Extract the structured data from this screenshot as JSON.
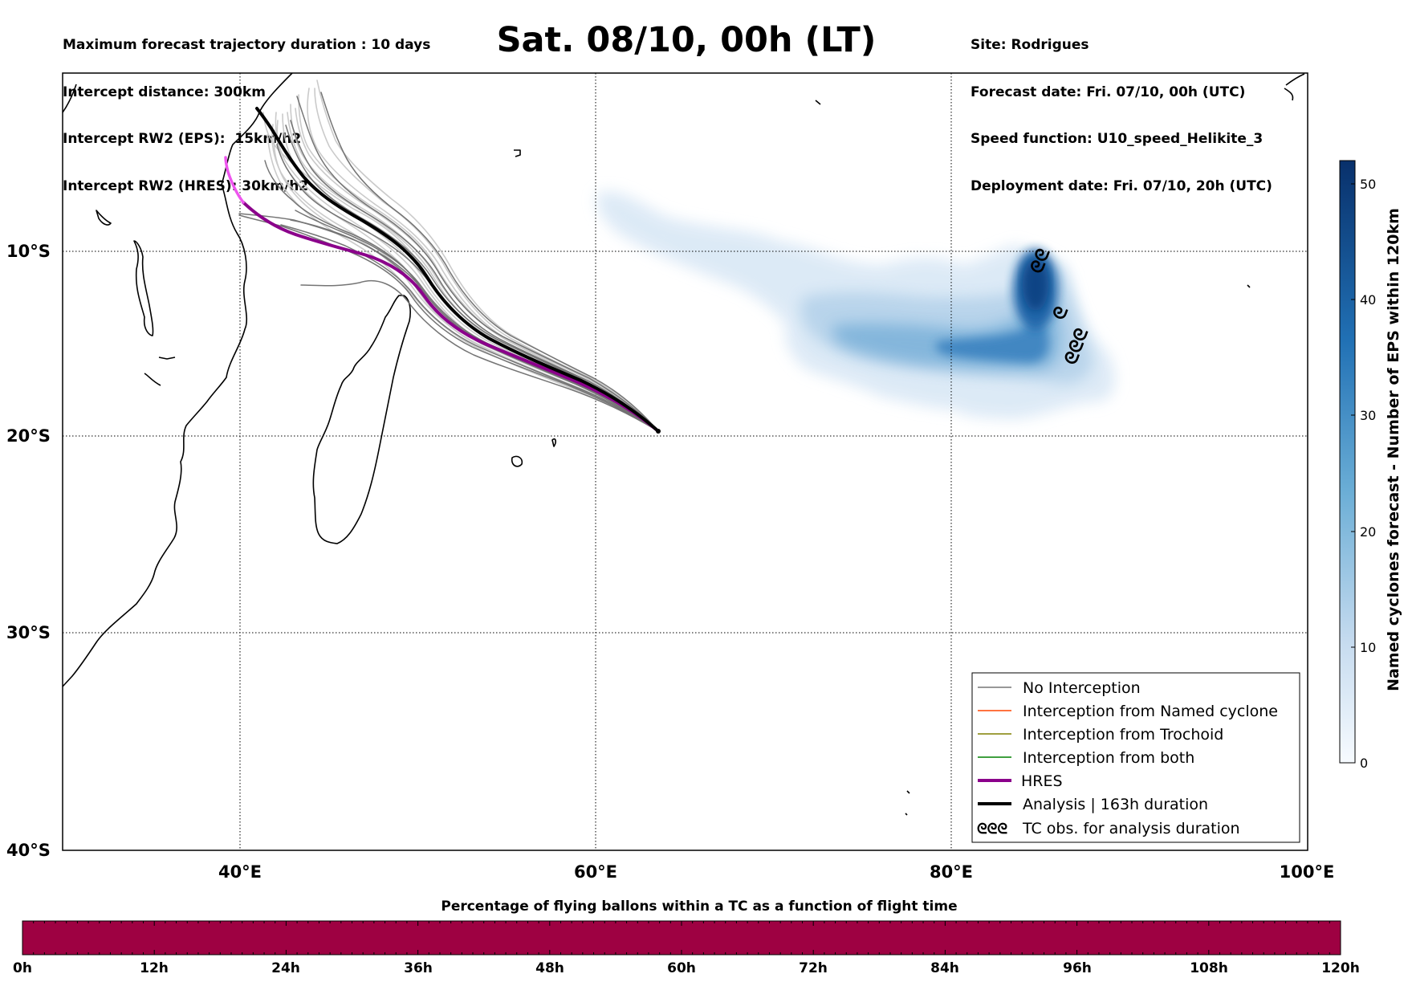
{
  "header": {
    "left_lines": [
      "Maximum forecast trajectory duration : 10 days",
      "Intercept distance: 300km",
      "Intercept RW2 (EPS):  15km/h2",
      "Intercept RW2 (HRES): 30km/h2"
    ],
    "title": "Sat. 08/10, 00h (LT)",
    "right_lines": [
      "Site: Rodrigues",
      "Forecast date: Fri. 07/10, 00h (UTC)",
      "Speed function: U10_speed_Helikite_3",
      "Deployment date: Fri. 07/10, 20h (UTC)"
    ]
  },
  "map": {
    "lat_labels": [
      "10°S",
      "20°S",
      "30°S",
      "40°S"
    ],
    "lon_labels": [
      "40°E",
      "60°E",
      "80°E",
      "100°E"
    ],
    "lon_range": [
      30,
      100
    ],
    "lat_range": [
      -40.3,
      0
    ],
    "launch_site": {
      "lon": 63.4,
      "lat": -19.7
    },
    "colors": {
      "no_interception": "#777777",
      "named_cyclone": "#ff4500",
      "trochoid": "#808000",
      "both": "#008000",
      "hres": "#8b008b",
      "analysis": "#000000",
      "density": "#08306b"
    }
  },
  "colorbar": {
    "label": "Named cyclones forecast - Number of EPS within 120km",
    "ticks": [
      "0",
      "10",
      "20",
      "30",
      "40",
      "50"
    ],
    "range": [
      0,
      52
    ]
  },
  "legend": {
    "items": [
      {
        "label": "No Interception",
        "color": "#777777"
      },
      {
        "label": "Interception from Named cyclone",
        "color": "#ff4500"
      },
      {
        "label": "Interception from Trochoid",
        "color": "#808000"
      },
      {
        "label": "Interception from both",
        "color": "#008000"
      },
      {
        "label": "HRES",
        "color": "#8b008b"
      },
      {
        "label": "Analysis | 163h duration",
        "color": "#000000"
      },
      {
        "label": "TC obs. for analysis duration",
        "color": "#000000"
      }
    ]
  },
  "pct_bar": {
    "title": "Percentage of flying ballons within a TC as a function of flight time",
    "ticks": [
      "0h",
      "12h",
      "24h",
      "36h",
      "48h",
      "60h",
      "72h",
      "84h",
      "96h",
      "108h",
      "120h"
    ],
    "color": "#9e0142"
  }
}
